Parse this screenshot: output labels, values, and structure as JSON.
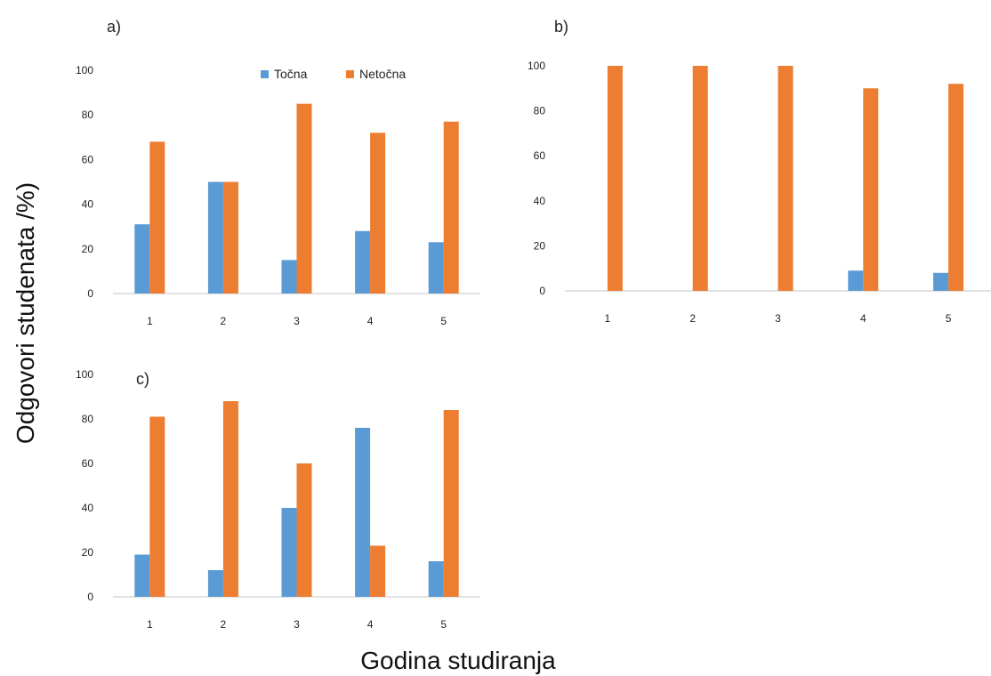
{
  "figure": {
    "ylabel": "Odgovori  studenata /%)",
    "xlabel": "Godina studiranja"
  },
  "legend": [
    {
      "name": "Točna",
      "color": "#5b9bd5"
    },
    {
      "name": "Netočna",
      "color": "#ed7d31"
    }
  ],
  "chart_data": [
    {
      "type": "bar",
      "panel": "a)",
      "categories": [
        "1",
        "2",
        "3",
        "4",
        "5"
      ],
      "series": [
        {
          "name": "Točna",
          "values": [
            31,
            50,
            15,
            28,
            23
          ]
        },
        {
          "name": "Netočna",
          "values": [
            68,
            50,
            85,
            72,
            77
          ]
        }
      ],
      "ylim": [
        0,
        100
      ],
      "yticks": [
        0,
        20,
        40,
        60,
        80,
        100
      ],
      "legend_position": "top-right"
    },
    {
      "type": "bar",
      "panel": "b)",
      "categories": [
        "1",
        "2",
        "3",
        "4",
        "5"
      ],
      "series": [
        {
          "name": "Točna",
          "values": [
            0,
            0,
            0,
            9,
            8
          ]
        },
        {
          "name": "Netočna",
          "values": [
            100,
            100,
            100,
            90,
            92
          ]
        }
      ],
      "ylim": [
        0,
        100
      ],
      "yticks": [
        0,
        20,
        40,
        60,
        80,
        100
      ]
    },
    {
      "type": "bar",
      "panel": "c)",
      "categories": [
        "1",
        "2",
        "3",
        "4",
        "5"
      ],
      "series": [
        {
          "name": "Točna",
          "values": [
            19,
            12,
            40,
            76,
            16
          ]
        },
        {
          "name": "Netočna",
          "values": [
            81,
            88,
            60,
            23,
            84
          ]
        }
      ],
      "ylim": [
        0,
        100
      ],
      "yticks": [
        0,
        20,
        40,
        60,
        80,
        100
      ]
    }
  ]
}
